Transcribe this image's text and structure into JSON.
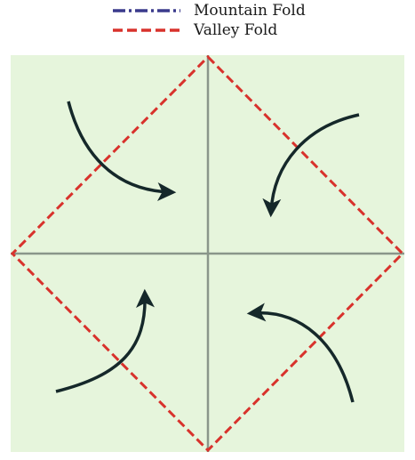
{
  "legend": {
    "items": [
      {
        "label": "Mountain Fold",
        "style": "dash-dot",
        "color": "#3a3a8c"
      },
      {
        "label": "Valley Fold",
        "style": "dashed",
        "color": "#d8322c"
      }
    ]
  },
  "diagram": {
    "paper_color": "#e6f5dc",
    "crease_color": "#8a968a",
    "valley_color": "#d8322c",
    "arrow_color": "#15282a",
    "arrows": [
      {
        "direction": "top-left corner toward center"
      },
      {
        "direction": "top-right corner toward center"
      },
      {
        "direction": "bottom-left corner toward center"
      },
      {
        "direction": "bottom-right corner toward center"
      }
    ]
  }
}
